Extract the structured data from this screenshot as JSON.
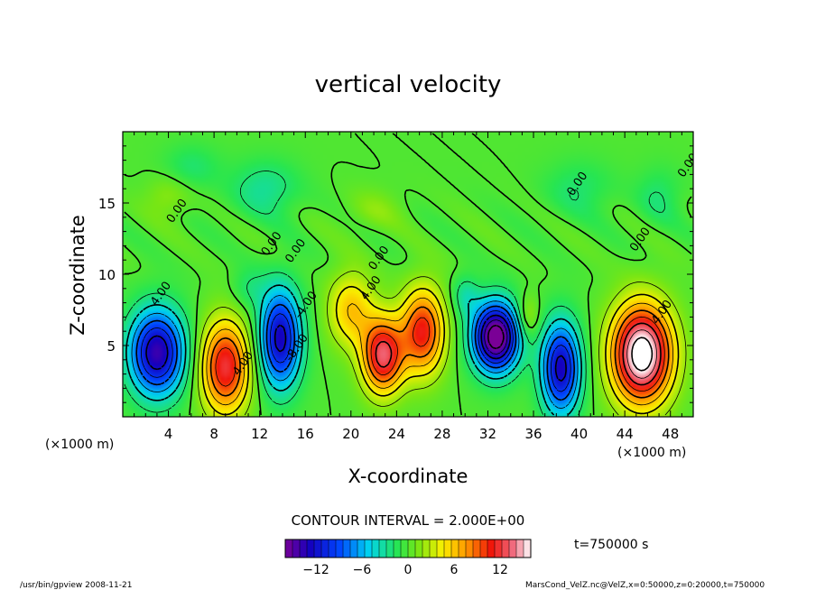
{
  "chart_data": {
    "type": "heatmap",
    "title": "vertical velocity",
    "xlabel": "X-coordinate",
    "ylabel": "Z-coordinate",
    "x_unit": "(×1000 m)",
    "x_unit_right": "(×1000 m)",
    "xlim": [
      0,
      50
    ],
    "ylim": [
      0,
      20
    ],
    "x_ticks": [
      4,
      8,
      12,
      16,
      20,
      24,
      28,
      32,
      36,
      40,
      44,
      48
    ],
    "y_ticks": [
      5,
      10,
      15
    ],
    "contour_interval_text": "CONTOUR INTERVAL = 2.000E+00",
    "time_text": "t=750000 s",
    "contour_labels": [
      {
        "text": "0.00",
        "x": 5.0,
        "z": 14.3
      },
      {
        "text": "0.00",
        "x": 13.3,
        "z": 12.0
      },
      {
        "text": "0.00",
        "x": 15.4,
        "z": 11.5
      },
      {
        "text": "0.00",
        "x": 22.7,
        "z": 11.0
      },
      {
        "text": "0.00",
        "x": 40.1,
        "z": 16.2
      },
      {
        "text": "0.00",
        "x": 49.8,
        "z": 17.5
      },
      {
        "text": "0.00",
        "x": 45.6,
        "z": 12.3
      },
      {
        "text": "4.00",
        "x": 3.6,
        "z": 8.5
      },
      {
        "text": "4.00",
        "x": 22.0,
        "z": 8.9
      },
      {
        "text": "-4.00",
        "x": 16.3,
        "z": 7.7
      },
      {
        "text": "-8.00",
        "x": 15.5,
        "z": 4.7
      },
      {
        "text": "4.00",
        "x": 10.8,
        "z": 3.6
      },
      {
        "text": "4.00",
        "x": 47.5,
        "z": 7.2
      }
    ],
    "colorbar": {
      "range": [
        -16,
        16
      ],
      "ticks": [
        -12,
        -6,
        0,
        6,
        12
      ],
      "tick_labels": [
        "−12",
        "−6",
        "0",
        "6",
        "12"
      ]
    },
    "cells": [
      {
        "x": 3.0,
        "z": 4.5,
        "w": -14,
        "sx": 2.4,
        "sz": 3.0
      },
      {
        "x": 9.0,
        "z": 3.5,
        "w": 12,
        "sx": 2.1,
        "sz": 3.2
      },
      {
        "x": 13.8,
        "z": 5.5,
        "w": -13,
        "sx": 1.8,
        "sz": 3.4
      },
      {
        "x": 20.0,
        "z": 7.5,
        "w": 6,
        "sx": 2.0,
        "sz": 2.6
      },
      {
        "x": 22.8,
        "z": 4.3,
        "w": 13,
        "sx": 1.8,
        "sz": 2.6
      },
      {
        "x": 26.3,
        "z": 6.0,
        "w": 11,
        "sx": 1.9,
        "sz": 3.0
      },
      {
        "x": 32.7,
        "z": 5.6,
        "w": -18,
        "sx": 2.0,
        "sz": 2.4
      },
      {
        "x": 38.4,
        "z": 3.4,
        "w": -13,
        "sx": 1.7,
        "sz": 3.2
      },
      {
        "x": 45.5,
        "z": 4.4,
        "w": 18,
        "sx": 2.6,
        "sz": 3.4
      },
      {
        "x": 11.0,
        "z": 9.0,
        "w": -2,
        "sx": 1.5,
        "sz": 1.5
      },
      {
        "x": 30.0,
        "z": 8.5,
        "w": -3,
        "sx": 1.2,
        "sz": 1.5
      },
      {
        "x": 35.5,
        "z": 7.0,
        "w": 3,
        "sx": 1.0,
        "sz": 1.5
      },
      {
        "x": 6.0,
        "z": 17.5,
        "w": -2,
        "sx": 2.5,
        "sz": 1.6
      },
      {
        "x": 12.5,
        "z": 16.0,
        "w": -3,
        "sx": 3.0,
        "sz": 2.0
      },
      {
        "x": 22.0,
        "z": 14.5,
        "w": 1.5,
        "sx": 2.5,
        "sz": 1.5
      },
      {
        "x": 40.0,
        "z": 16.0,
        "w": -2,
        "sx": 3.0,
        "sz": 2.0
      },
      {
        "x": 47.0,
        "z": 15.5,
        "w": -2,
        "sx": 2.0,
        "sz": 2.0
      },
      {
        "x": 4.0,
        "z": 15.5,
        "w": 2,
        "sx": 2.0,
        "sz": 1.5
      }
    ]
  },
  "footer": {
    "left": "/usr/bin/gpview   2008-11-21",
    "right": "MarsCond_VelZ.nc@VelZ,x=0:50000,z=0:20000,t=750000"
  }
}
